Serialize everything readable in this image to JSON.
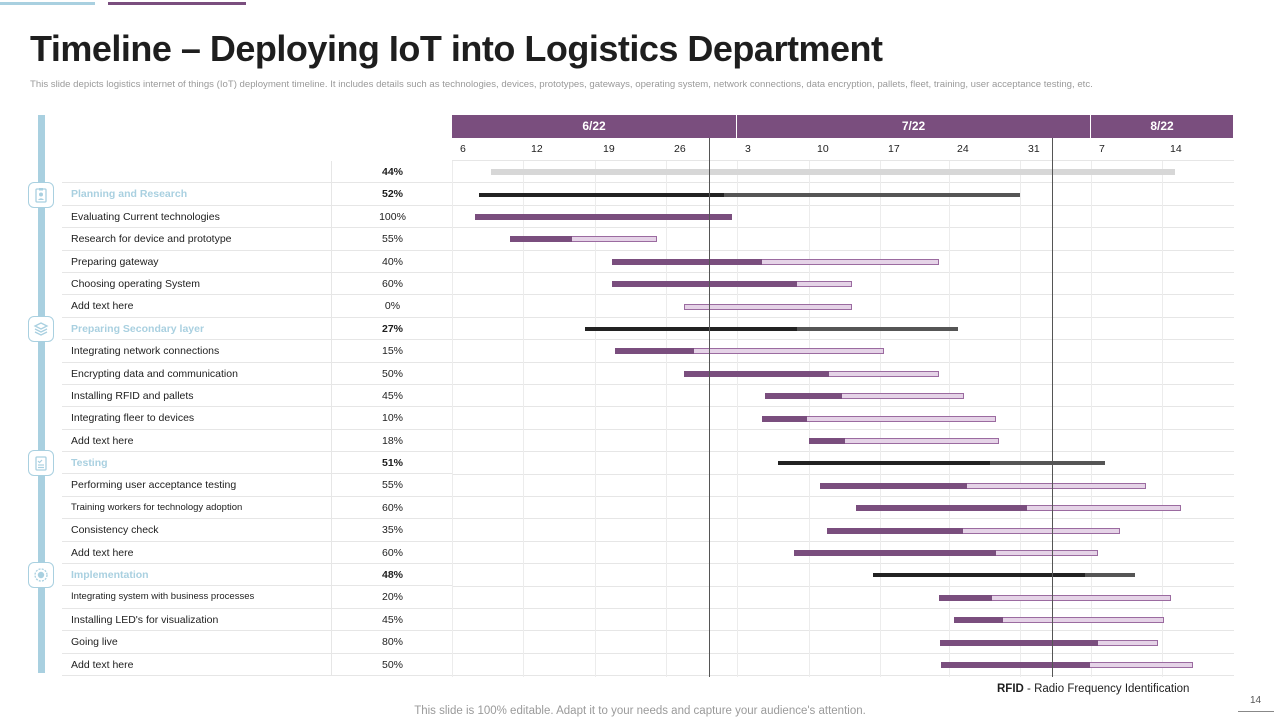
{
  "slide": {
    "title": "Timeline – Deploying IoT into Logistics Department",
    "subtitle": "This slide depicts logistics internet of things (IoT) deployment timeline. It includes details such as technologies, devices, prototypes, gateways, operating system, network connections, data encryption, pallets, fleet, training, user acceptance testing, etc.",
    "footer": "This slide is 100% editable. Adapt it to your needs and capture your audience's attention.",
    "page_number": "14",
    "legend_abbr": "RFID",
    "legend_text": "- Radio Frequency Identification"
  },
  "colors": {
    "accent_purple": "#7a4e7e",
    "accent_blue": "#a9d0e0",
    "bar_light": "#e5d3e7",
    "summary_dark": "#222222"
  },
  "timeline": {
    "months": [
      "6/22",
      "7/22",
      "8/22"
    ],
    "days": [
      "6",
      "12",
      "19",
      "26",
      "3",
      "10",
      "17",
      "24",
      "31",
      "7",
      "14"
    ],
    "overall_percent": "44%",
    "rows": [
      {
        "label": "Planning and Research",
        "percent": "52%",
        "type": "phase",
        "icon": "clipboard-user-icon"
      },
      {
        "label": "Evaluating Current technologies",
        "percent": "100%",
        "type": "task"
      },
      {
        "label": "Research for device and prototype",
        "percent": "55%",
        "type": "task"
      },
      {
        "label": "Preparing gateway",
        "percent": "40%",
        "type": "task"
      },
      {
        "label": "Choosing operating System",
        "percent": "60%",
        "type": "task"
      },
      {
        "label": "Add text here",
        "percent": "0%",
        "type": "task"
      },
      {
        "label": "Preparing Secondary layer",
        "percent": "27%",
        "type": "phase",
        "icon": "layers-icon"
      },
      {
        "label": "Integrating network connections",
        "percent": "15%",
        "type": "task"
      },
      {
        "label": "Encrypting data and communication",
        "percent": "50%",
        "type": "task"
      },
      {
        "label": "Installing RFID  and pallets",
        "percent": "45%",
        "type": "task"
      },
      {
        "label": "Integrating fleer to devices",
        "percent": "10%",
        "type": "task"
      },
      {
        "label": "Add text  here",
        "percent": "18%",
        "type": "task"
      },
      {
        "label": "Testing",
        "percent": "51%",
        "type": "phase",
        "icon": "checklist-icon"
      },
      {
        "label": "Performing user acceptance testing",
        "percent": "55%",
        "type": "task"
      },
      {
        "label": "Training workers for technology adoption",
        "percent": "60%",
        "type": "task",
        "small": true
      },
      {
        "label": "Consistency check",
        "percent": "35%",
        "type": "task"
      },
      {
        "label": "Add text here",
        "percent": "60%",
        "type": "task"
      },
      {
        "label": "Implementation",
        "percent": "48%",
        "type": "phase",
        "icon": "gear-icon"
      },
      {
        "label": "Integrating system with business processes",
        "percent": "20%",
        "type": "task",
        "small": true
      },
      {
        "label": "Installing LED's  for visualization",
        "percent": "45%",
        "type": "task"
      },
      {
        "label": "Going live",
        "percent": "80%",
        "type": "task"
      },
      {
        "label": "Add text here",
        "percent": "50%",
        "type": "task"
      }
    ]
  }
}
